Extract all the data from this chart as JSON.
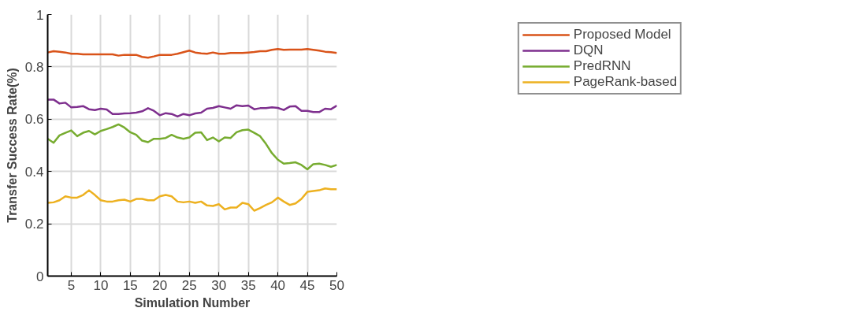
{
  "chart_data": {
    "type": "line",
    "xlabel": "Simulation Number",
    "ylabel": "Transfer Success Rate(%)",
    "x": [
      1,
      2,
      3,
      4,
      5,
      6,
      7,
      8,
      9,
      10,
      11,
      12,
      13,
      14,
      15,
      16,
      17,
      18,
      19,
      20,
      21,
      22,
      23,
      24,
      25,
      26,
      27,
      28,
      29,
      30,
      31,
      32,
      33,
      34,
      35,
      36,
      37,
      38,
      39,
      40,
      41,
      42,
      43,
      44,
      45,
      46,
      47,
      48,
      49,
      50
    ],
    "xlim": [
      1,
      50
    ],
    "xticks": [
      5,
      10,
      15,
      20,
      25,
      30,
      35,
      40,
      45,
      50
    ],
    "ylim": [
      0,
      1
    ],
    "yticks": [
      0,
      0.2,
      0.4,
      0.6,
      0.8,
      1
    ],
    "grid": true,
    "legend": "top right",
    "marker": "none",
    "line_style": "solid",
    "series": [
      {
        "name": "Proposed Model",
        "color": "#d95319",
        "values": [
          0.855,
          0.86,
          0.858,
          0.855,
          0.85,
          0.85,
          0.848,
          0.848,
          0.848,
          0.848,
          0.848,
          0.848,
          0.843,
          0.846,
          0.846,
          0.846,
          0.838,
          0.835,
          0.84,
          0.846,
          0.846,
          0.846,
          0.85,
          0.856,
          0.862,
          0.855,
          0.852,
          0.85,
          0.855,
          0.85,
          0.85,
          0.853,
          0.853,
          0.853,
          0.855,
          0.857,
          0.86,
          0.86,
          0.865,
          0.868,
          0.865,
          0.866,
          0.866,
          0.866,
          0.868,
          0.865,
          0.862,
          0.858,
          0.856,
          0.853
        ]
      },
      {
        "name": "DQN",
        "color": "#7e2f8e",
        "values": [
          0.675,
          0.675,
          0.66,
          0.663,
          0.645,
          0.647,
          0.65,
          0.638,
          0.635,
          0.64,
          0.637,
          0.62,
          0.62,
          0.622,
          0.623,
          0.625,
          0.63,
          0.642,
          0.632,
          0.615,
          0.623,
          0.62,
          0.61,
          0.62,
          0.615,
          0.622,
          0.625,
          0.64,
          0.643,
          0.65,
          0.645,
          0.64,
          0.653,
          0.65,
          0.652,
          0.638,
          0.642,
          0.642,
          0.645,
          0.643,
          0.635,
          0.648,
          0.65,
          0.632,
          0.632,
          0.627,
          0.627,
          0.64,
          0.638,
          0.652
        ]
      },
      {
        "name": "PredRNN",
        "color": "#77ac30",
        "values": [
          0.525,
          0.51,
          0.538,
          0.548,
          0.557,
          0.535,
          0.548,
          0.555,
          0.542,
          0.555,
          0.562,
          0.57,
          0.58,
          0.568,
          0.55,
          0.54,
          0.518,
          0.512,
          0.525,
          0.525,
          0.528,
          0.54,
          0.53,
          0.525,
          0.53,
          0.548,
          0.55,
          0.52,
          0.53,
          0.515,
          0.53,
          0.528,
          0.55,
          0.558,
          0.56,
          0.548,
          0.535,
          0.505,
          0.47,
          0.445,
          0.43,
          0.432,
          0.435,
          0.425,
          0.408,
          0.428,
          0.43,
          0.425,
          0.418,
          0.425
        ]
      },
      {
        "name": "PageRank-based",
        "color": "#edb120",
        "values": [
          0.28,
          0.282,
          0.29,
          0.305,
          0.3,
          0.3,
          0.31,
          0.328,
          0.31,
          0.29,
          0.285,
          0.285,
          0.29,
          0.292,
          0.285,
          0.295,
          0.295,
          0.29,
          0.29,
          0.305,
          0.31,
          0.305,
          0.285,
          0.282,
          0.285,
          0.28,
          0.285,
          0.27,
          0.268,
          0.275,
          0.255,
          0.262,
          0.262,
          0.28,
          0.275,
          0.25,
          0.26,
          0.272,
          0.282,
          0.3,
          0.285,
          0.272,
          0.278,
          0.295,
          0.322,
          0.325,
          0.328,
          0.335,
          0.332,
          0.332
        ]
      }
    ]
  }
}
